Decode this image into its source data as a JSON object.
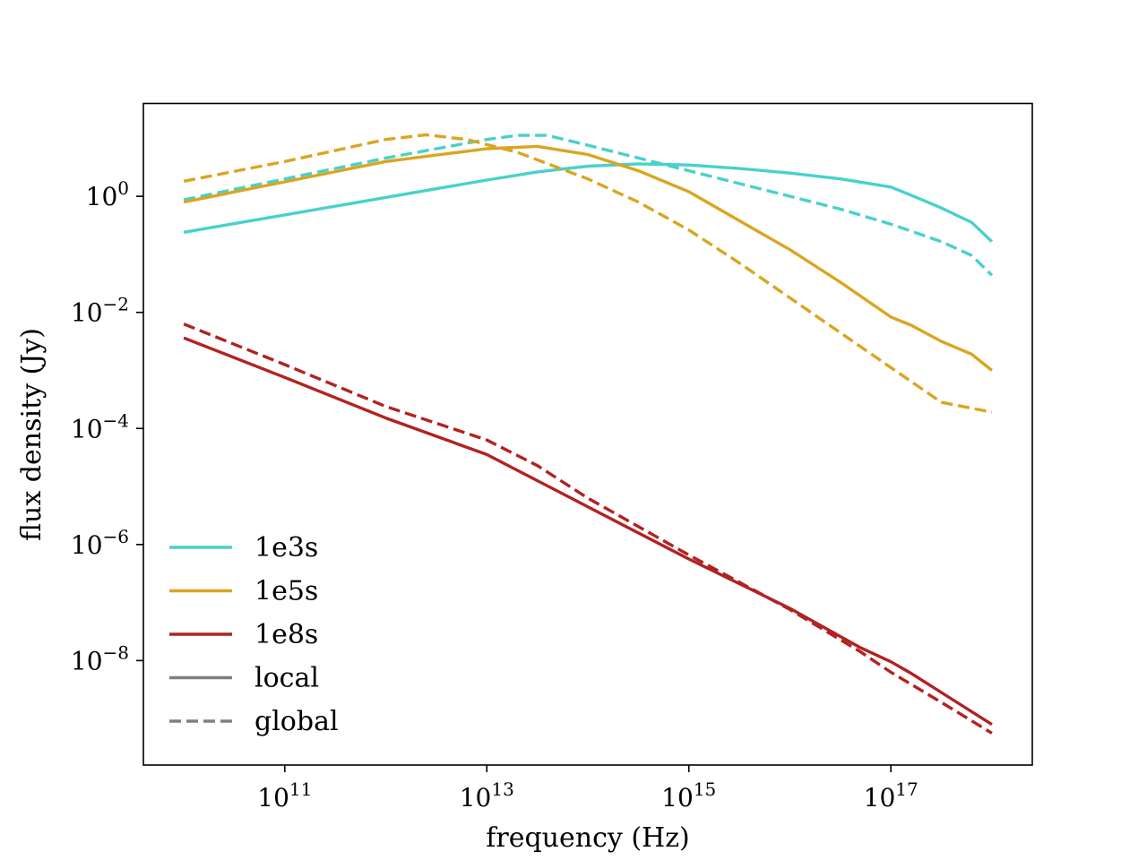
{
  "chart_data": {
    "type": "line",
    "title": "",
    "xlabel": "frequency (Hz)",
    "ylabel": "flux density (Jy)",
    "xscale": "log",
    "yscale": "log",
    "xlim_log10": [
      9.6,
      18.4
    ],
    "ylim_log10": [
      -9.8,
      1.6
    ],
    "xticks": [
      {
        "base": "10",
        "exp": "11",
        "log10": 11
      },
      {
        "base": "10",
        "exp": "13",
        "log10": 13
      },
      {
        "base": "10",
        "exp": "15",
        "log10": 15
      },
      {
        "base": "10",
        "exp": "17",
        "log10": 17
      }
    ],
    "yticks": [
      {
        "base": "10",
        "exp": "0",
        "log10": 0
      },
      {
        "base": "10",
        "exp": "−2",
        "log10": -2
      },
      {
        "base": "10",
        "exp": "−4",
        "log10": -4
      },
      {
        "base": "10",
        "exp": "−6",
        "log10": -6
      },
      {
        "base": "10",
        "exp": "−8",
        "log10": -8
      }
    ],
    "legend": {
      "placement": "lower-left",
      "entries": [
        {
          "label": "1e3s",
          "color": "#48d1cc",
          "style": "solid"
        },
        {
          "label": "1e5s",
          "color": "#daa520",
          "style": "solid"
        },
        {
          "label": "1e8s",
          "color": "#b22222",
          "style": "solid"
        },
        {
          "label": "local",
          "color": "#808080",
          "style": "solid"
        },
        {
          "label": "global",
          "color": "#808080",
          "style": "dashed"
        }
      ]
    },
    "series": [
      {
        "name": "1e3s local",
        "color": "#48d1cc",
        "style": "solid",
        "x_log10": [
          10.0,
          11.0,
          12.0,
          13.0,
          13.5,
          14.0,
          14.5,
          15.0,
          15.5,
          16.0,
          16.5,
          17.0,
          17.2,
          17.5,
          17.8,
          18.0
        ],
        "y_log10": [
          -0.62,
          -0.32,
          -0.02,
          0.28,
          0.42,
          0.52,
          0.56,
          0.54,
          0.48,
          0.4,
          0.3,
          0.16,
          0.02,
          -0.2,
          -0.45,
          -0.78
        ]
      },
      {
        "name": "1e3s global",
        "color": "#48d1cc",
        "style": "dashed",
        "x_log10": [
          10.0,
          11.0,
          12.0,
          13.0,
          13.3,
          13.6,
          14.0,
          14.5,
          15.0,
          15.5,
          16.0,
          16.5,
          17.0,
          17.5,
          17.8,
          18.0
        ],
        "y_log10": [
          -0.06,
          0.3,
          0.66,
          0.98,
          1.05,
          1.05,
          0.88,
          0.66,
          0.44,
          0.22,
          0.0,
          -0.22,
          -0.48,
          -0.78,
          -1.02,
          -1.36
        ]
      },
      {
        "name": "1e5s local",
        "color": "#daa520",
        "style": "solid",
        "x_log10": [
          10.0,
          11.0,
          12.0,
          13.0,
          13.5,
          14.0,
          14.5,
          15.0,
          15.5,
          16.0,
          16.5,
          17.0,
          17.2,
          17.5,
          17.8,
          18.0
        ],
        "y_log10": [
          -0.1,
          0.25,
          0.6,
          0.82,
          0.86,
          0.72,
          0.44,
          0.08,
          -0.42,
          -0.92,
          -1.48,
          -2.08,
          -2.22,
          -2.5,
          -2.72,
          -3.0
        ]
      },
      {
        "name": "1e5s global",
        "color": "#daa520",
        "style": "dashed",
        "x_log10": [
          10.0,
          11.0,
          12.0,
          12.4,
          12.8,
          13.3,
          14.0,
          14.5,
          15.0,
          15.5,
          16.0,
          16.5,
          17.0,
          17.5,
          18.0
        ],
        "y_log10": [
          0.26,
          0.6,
          0.98,
          1.06,
          0.98,
          0.76,
          0.3,
          -0.1,
          -0.58,
          -1.15,
          -1.75,
          -2.35,
          -2.95,
          -3.55,
          -3.72
        ]
      },
      {
        "name": "1e8s local",
        "color": "#b22222",
        "style": "solid",
        "x_log10": [
          10.0,
          11.0,
          12.0,
          13.0,
          14.0,
          15.0,
          16.0,
          16.7,
          17.0,
          17.2,
          17.5,
          18.0
        ],
        "y_log10": [
          -2.44,
          -3.12,
          -3.82,
          -4.45,
          -5.35,
          -6.25,
          -7.1,
          -7.78,
          -8.02,
          -8.22,
          -8.55,
          -9.1
        ]
      },
      {
        "name": "1e8s global",
        "color": "#b22222",
        "style": "dashed",
        "x_log10": [
          10.0,
          11.0,
          12.0,
          13.0,
          13.5,
          14.0,
          15.0,
          16.0,
          16.7,
          17.0,
          17.5,
          18.0
        ],
        "y_log10": [
          -2.2,
          -2.9,
          -3.62,
          -4.2,
          -4.64,
          -5.2,
          -6.18,
          -7.12,
          -7.85,
          -8.2,
          -8.72,
          -9.25
        ]
      }
    ]
  }
}
